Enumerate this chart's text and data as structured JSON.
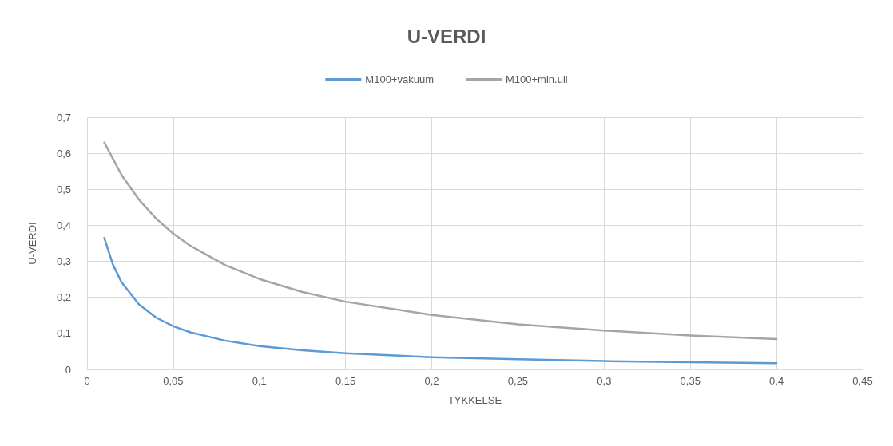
{
  "chart_data": {
    "type": "line",
    "title": "U-VERDI",
    "xlabel": "TYKKELSE",
    "ylabel": "U-VERDI",
    "xlim": [
      0,
      0.45
    ],
    "xticks": [
      0,
      {
        "value": 0.05,
        "label": "0,05"
      },
      {
        "value": 0.1,
        "label": "0,1"
      },
      {
        "value": 0.15,
        "label": "0,15"
      },
      {
        "value": 0.2,
        "label": "0,2"
      },
      {
        "value": 0.25,
        "label": "0,25"
      },
      {
        "value": 0.3,
        "label": "0,3"
      },
      {
        "value": 0.35,
        "label": "0,35"
      },
      {
        "value": 0.4,
        "label": "0,4"
      },
      {
        "value": 0.45,
        "label": "0,45"
      }
    ],
    "ylim": [
      0,
      0.7
    ],
    "yticks": [
      0,
      {
        "value": 0.1,
        "label": "0,1"
      },
      {
        "value": 0.2,
        "label": "0,2"
      },
      {
        "value": 0.3,
        "label": "0,3"
      },
      {
        "value": 0.4,
        "label": "0,4"
      },
      {
        "value": 0.5,
        "label": "0,5"
      },
      {
        "value": 0.6,
        "label": "0,6"
      },
      {
        "value": 0.7,
        "label": "0,7"
      }
    ],
    "grid": true,
    "legend": "top",
    "marker": "none",
    "line_style": "solid",
    "series": [
      {
        "name": "M100+vakuum",
        "color": "#5b9bd5",
        "x": [
          0.01,
          0.015,
          0.02,
          0.03,
          0.04,
          0.05,
          0.06,
          0.08,
          0.1,
          0.125,
          0.15,
          0.2,
          0.25,
          0.3,
          0.35,
          0.4
        ],
        "values": [
          0.365,
          0.291,
          0.242,
          0.181,
          0.144,
          0.12,
          0.103,
          0.08,
          0.065,
          0.053,
          0.045,
          0.034,
          0.028,
          0.023,
          0.02,
          0.017
        ]
      },
      {
        "name": "M100+min.ull",
        "color": "#a5a5a5",
        "x": [
          0.01,
          0.02,
          0.03,
          0.04,
          0.05,
          0.06,
          0.08,
          0.1,
          0.125,
          0.15,
          0.2,
          0.25,
          0.3,
          0.35,
          0.4
        ],
        "values": [
          0.63,
          0.54,
          0.472,
          0.419,
          0.377,
          0.343,
          0.29,
          0.251,
          0.215,
          0.188,
          0.151,
          0.125,
          0.108,
          0.094,
          0.084
        ]
      }
    ]
  }
}
